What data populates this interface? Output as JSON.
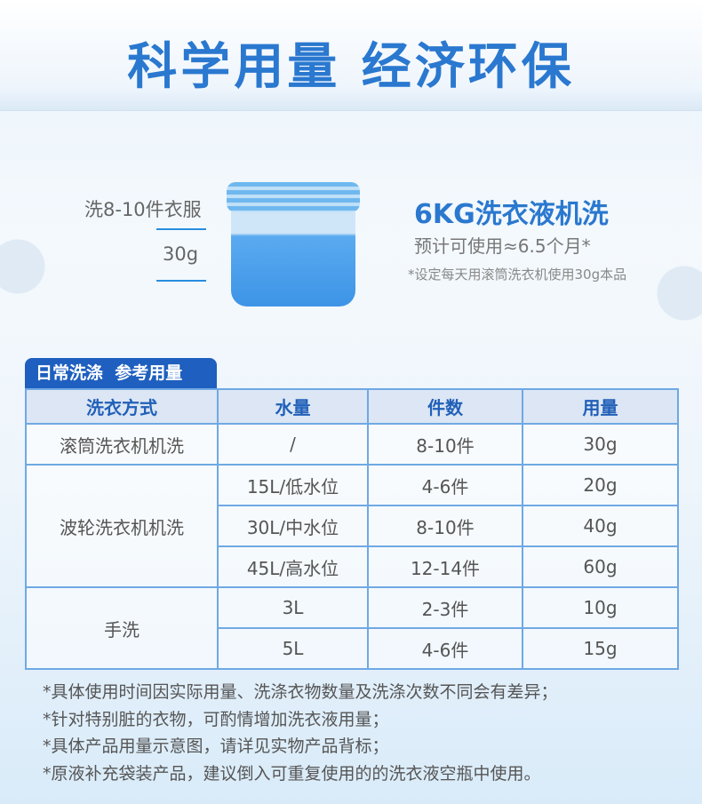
{
  "title": "科学用量 经济环保",
  "left_labels": {
    "garments": "洗8-10件衣服",
    "dose": "30g"
  },
  "right": {
    "heading": "6KG洗衣液机洗",
    "estimate": "预计可使用≈6.5个月*",
    "note": "*设定每天用滚筒洗衣机使用30g本品"
  },
  "table": {
    "tab_label": "日常洗涤  参考用量",
    "headers": [
      "洗衣方式",
      "水量",
      "件数",
      "用量"
    ],
    "groups": [
      {
        "method": "滚筒洗衣机机洗",
        "rows": [
          [
            "/",
            "8-10件",
            "30g"
          ]
        ]
      },
      {
        "method": "波轮洗衣机机洗",
        "rows": [
          [
            "15L/低水位",
            "4-6件",
            "20g"
          ],
          [
            "30L/中水位",
            "8-10件",
            "40g"
          ],
          [
            "45L/高水位",
            "12-14件",
            "60g"
          ]
        ]
      },
      {
        "method": "手洗",
        "rows": [
          [
            "3L",
            "2-3件",
            "10g"
          ],
          [
            "5L",
            "4-6件",
            "15g"
          ]
        ]
      }
    ]
  },
  "notes": [
    "*具体使用时间因实际用量、洗涤衣物数量及洗涤次数不同会有差异；",
    "*针对特别脏的衣物，可酌情增加洗衣液用量；",
    "*具体产品用量示意图，请详见实物产品背标；",
    "*原液补充袋装产品，建议倒入可重复使用的的洗衣液空瓶中使用。"
  ],
  "colors": {
    "accent": "#2a78cf",
    "tab": "#1e5fbf",
    "border": "#6fa9e4"
  }
}
